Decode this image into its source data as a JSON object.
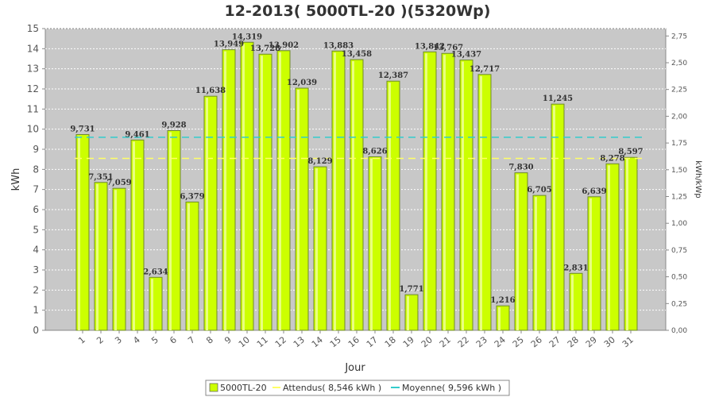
{
  "chart_data": {
    "type": "bar",
    "title": "12-2013( 5000TL-20 )(5320Wp)",
    "xlabel": "Jour",
    "ylabel": "kWh",
    "ylabel_right": "kWh/kWp",
    "ylim": [
      0,
      15
    ],
    "ylim_right": [
      0,
      2.819
    ],
    "yticks": [
      "0",
      "1",
      "2",
      "3",
      "4",
      "5",
      "6",
      "7",
      "8",
      "9",
      "10",
      "11",
      "12",
      "13",
      "14",
      "15"
    ],
    "yticks_right": [
      "0,00",
      "0,25",
      "0,50",
      "0,75",
      "1,00",
      "1,25",
      "1,50",
      "1,75",
      "2,00",
      "2,25",
      "2,50",
      "2,75"
    ],
    "yticks_right_values": [
      0,
      0.25,
      0.5,
      0.75,
      1.0,
      1.25,
      1.5,
      1.75,
      2.0,
      2.25,
      2.5,
      2.75
    ],
    "grid": true,
    "categories": [
      "1",
      "2",
      "3",
      "4",
      "5",
      "6",
      "7",
      "8",
      "9",
      "10",
      "11",
      "12",
      "13",
      "14",
      "15",
      "16",
      "17",
      "18",
      "19",
      "20",
      "21",
      "22",
      "23",
      "24",
      "25",
      "26",
      "27",
      "28",
      "29",
      "30",
      "31"
    ],
    "series": [
      {
        "name": "5000TL-20",
        "color": "#ccff00",
        "values": [
          9.731,
          7.351,
          7.059,
          9.461,
          2.634,
          9.928,
          6.379,
          11.638,
          13.949,
          14.319,
          13.728,
          13.902,
          12.039,
          8.129,
          13.883,
          13.458,
          8.626,
          12.387,
          1.771,
          13.842,
          13.767,
          13.437,
          12.717,
          1.216,
          7.83,
          6.705,
          11.245,
          2.831,
          6.639,
          8.278,
          8.597
        ],
        "labels": [
          "9,731",
          "7,351",
          "7,059",
          "9,461",
          "2,634",
          "9,928",
          "6,379",
          "11,638",
          "13,949",
          "14,319",
          "13,728",
          "13,902",
          "12,039",
          "8,129",
          "13,883",
          "13,458",
          "8,626",
          "12,387",
          "1,771",
          "13,842",
          "13,767",
          "13,437",
          "12,717",
          "1,216",
          "7,830",
          "6,705",
          "11,245",
          "2,831",
          "6,639",
          "8,278",
          "8,597"
        ]
      }
    ],
    "reference_lines": [
      {
        "name": "Attendus( 8,546 kWh )",
        "value": 8.546,
        "color": "#ffff66"
      },
      {
        "name": "Moyenne( 9,596 kWh )",
        "value": 9.596,
        "color": "#33cccc"
      }
    ],
    "legend_position": "bottom"
  }
}
